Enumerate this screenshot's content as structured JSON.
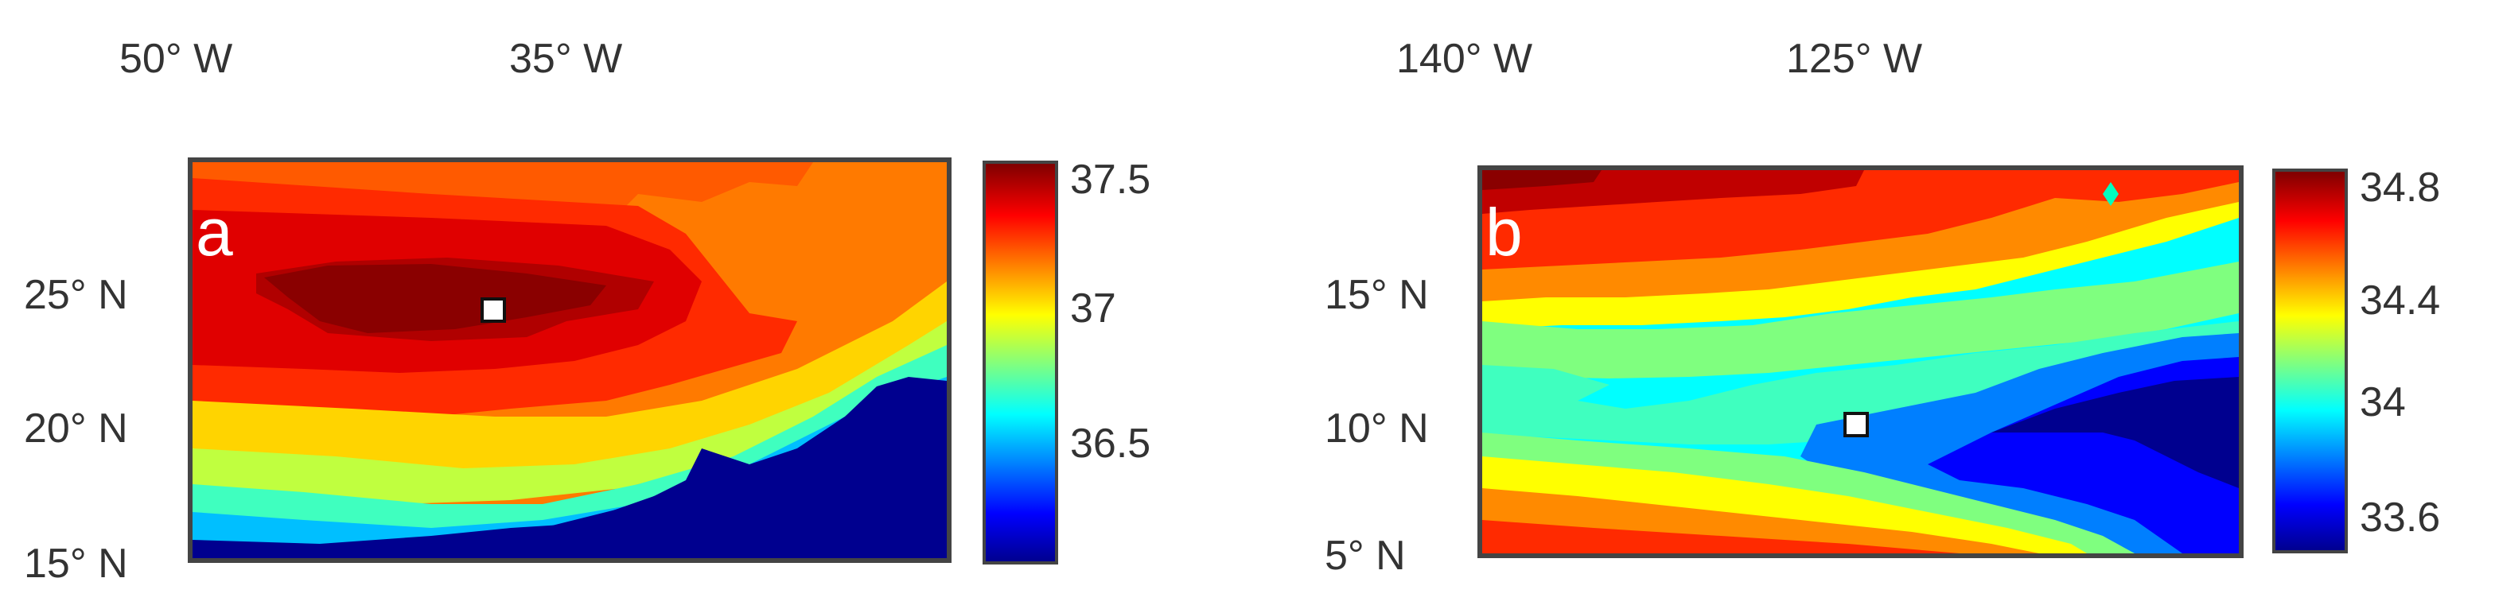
{
  "panels": [
    {
      "letter": "a",
      "lon_labels": [
        "50° W",
        "35° W"
      ],
      "lat_labels": [
        "25° N",
        "20° N",
        "15° N"
      ],
      "colorbar": {
        "ticks": [
          "37.5",
          "37",
          "36.5"
        ],
        "range": [
          36.1,
          37.6
        ]
      }
    },
    {
      "letter": "b",
      "lon_labels": [
        "140° W",
        "125° W"
      ],
      "lat_labels": [
        "15° N",
        "10° N",
        "5° N"
      ],
      "colorbar": {
        "ticks": [
          "34.8",
          "34.4",
          "34",
          "33.6"
        ],
        "range": [
          33.5,
          34.85
        ]
      }
    }
  ],
  "colors": {
    "frame": "#444444",
    "jet_darkred": "#7f0000",
    "jet_red": "#ff0000",
    "jet_yellow": "#ffff00",
    "jet_cyan": "#00ffff",
    "jet_blue": "#0000ff",
    "jet_darkblue": "#00008f"
  }
}
